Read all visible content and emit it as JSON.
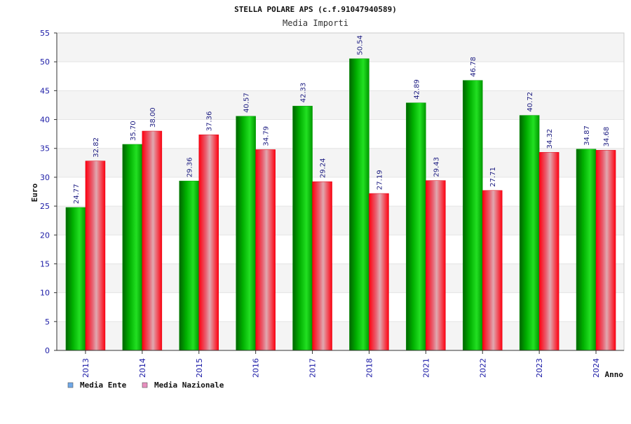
{
  "chart_data": {
    "type": "bar",
    "title": "STELLA POLARE APS (c.f.91047940589)",
    "subtitle": "Media Importi",
    "xlabel": "Anno",
    "ylabel": "Euro",
    "ylim": [
      0,
      55
    ],
    "yticks": [
      0,
      5,
      10,
      15,
      20,
      25,
      30,
      35,
      40,
      45,
      50,
      55
    ],
    "grid": true,
    "legend_position": "bottom-left",
    "categories": [
      "2013",
      "2014",
      "2015",
      "2016",
      "2017",
      "2018",
      "2021",
      "2022",
      "2023",
      "2024"
    ],
    "series": [
      {
        "name": "Media Ente",
        "legend_color": "#6fa8e8",
        "bar_color": "#00c000",
        "values": [
          24.77,
          35.7,
          29.36,
          40.57,
          42.33,
          50.54,
          42.89,
          46.78,
          40.72,
          34.87
        ],
        "labels": [
          "24.77",
          "35.70",
          "29.36",
          "40.57",
          "42.33",
          "50.54",
          "42.89",
          "46.78",
          "40.72",
          "34.87"
        ]
      },
      {
        "name": "Media Nazionale",
        "legend_color": "#e88fbf",
        "bar_color": "#ff0010",
        "values": [
          32.82,
          38.0,
          37.36,
          34.79,
          29.24,
          27.19,
          29.43,
          27.71,
          34.32,
          34.68
        ],
        "labels": [
          "32.82",
          "38.00",
          "37.36",
          "34.79",
          "29.24",
          "27.19",
          "29.43",
          "27.71",
          "34.32",
          "34.68"
        ]
      }
    ]
  }
}
